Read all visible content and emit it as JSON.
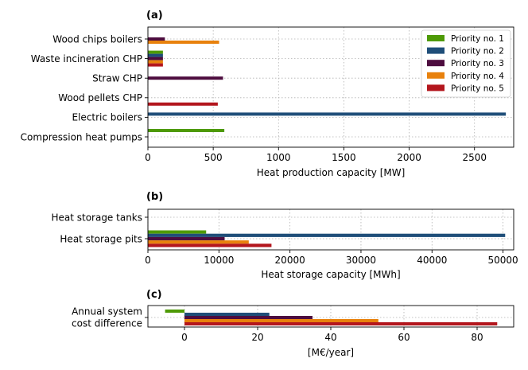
{
  "colors": {
    "Priority no. 1": "#4e9a06",
    "Priority no. 2": "#1f4e79",
    "Priority no. 3": "#4d0d3f",
    "Priority no. 4": "#e8810c",
    "Priority no. 5": "#b3161d"
  },
  "chart_data": [
    {
      "id": "a",
      "panel_tag": "(a)",
      "type": "bar",
      "orientation": "horizontal",
      "xlabel": "Heat production capacity [MW]",
      "xlim": [
        0,
        2800
      ],
      "xticks": [
        0,
        500,
        1000,
        1500,
        2000,
        2500
      ],
      "grid": true,
      "legend": "top-right",
      "categories": [
        "Wood chips boilers",
        "Waste incineration CHP",
        "Straw CHP",
        "Wood pellets CHP",
        "Electric boilers",
        "Compression heat pumps"
      ],
      "series": [
        {
          "name": "Priority no. 1",
          "values": [
            0,
            115,
            0,
            0,
            0,
            585
          ]
        },
        {
          "name": "Priority no. 2",
          "values": [
            0,
            115,
            0,
            0,
            2740,
            0
          ]
        },
        {
          "name": "Priority no. 3",
          "values": [
            130,
            115,
            575,
            0,
            0,
            0
          ]
        },
        {
          "name": "Priority no. 4",
          "values": [
            545,
            115,
            0,
            0,
            0,
            0
          ]
        },
        {
          "name": "Priority no. 5",
          "values": [
            0,
            115,
            0,
            535,
            0,
            0
          ]
        }
      ]
    },
    {
      "id": "b",
      "panel_tag": "(b)",
      "type": "bar",
      "orientation": "horizontal",
      "xlabel": "Heat storage capacity [MWh]",
      "xlim": [
        0,
        51500
      ],
      "xticks": [
        0,
        10000,
        20000,
        30000,
        40000,
        50000
      ],
      "grid": true,
      "categories": [
        "Heat storage tanks",
        "Heat storage pits"
      ],
      "series": [
        {
          "name": "Priority no. 1",
          "values": [
            0,
            8200
          ]
        },
        {
          "name": "Priority no. 2",
          "values": [
            0,
            50300
          ]
        },
        {
          "name": "Priority no. 3",
          "values": [
            0,
            10800
          ]
        },
        {
          "name": "Priority no. 4",
          "values": [
            0,
            14200
          ]
        },
        {
          "name": "Priority no. 5",
          "values": [
            0,
            17400
          ]
        }
      ]
    },
    {
      "id": "c",
      "panel_tag": "(c)",
      "type": "bar",
      "orientation": "horizontal",
      "xlabel": "[M€/year]",
      "xlim": [
        -10,
        90
      ],
      "xticks": [
        0,
        20,
        40,
        60,
        80
      ],
      "grid": true,
      "categories": [
        "Annual system cost difference"
      ],
      "category_lines": [
        [
          "Annual system",
          "cost difference"
        ]
      ],
      "series": [
        {
          "name": "Priority no. 1",
          "values": [
            -5.3
          ]
        },
        {
          "name": "Priority no. 2",
          "values": [
            23.2
          ]
        },
        {
          "name": "Priority no. 3",
          "values": [
            35.0
          ]
        },
        {
          "name": "Priority no. 4",
          "values": [
            53.0
          ]
        },
        {
          "name": "Priority no. 5",
          "values": [
            85.5
          ]
        }
      ]
    }
  ]
}
